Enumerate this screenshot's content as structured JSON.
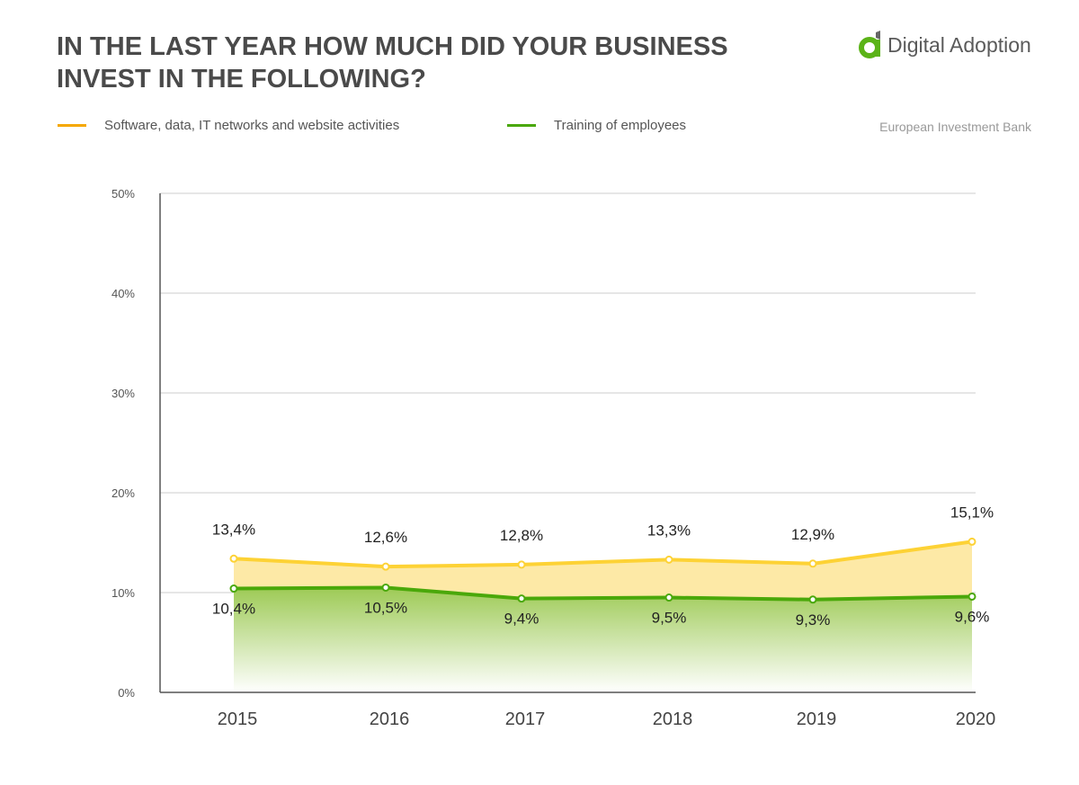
{
  "header": {
    "title": "IN THE LAST YEAR HOW MUCH DID YOUR BUSINESS INVEST IN THE FOLLOWING?",
    "logo_text": "Digital Adoption",
    "source": "European Investment Bank"
  },
  "chart_data": {
    "type": "area",
    "title": "IN THE LAST YEAR HOW MUCH DID YOUR BUSINESS INVEST IN THE FOLLOWING?",
    "categories": [
      "2015",
      "2016",
      "2017",
      "2018",
      "2019",
      "2020"
    ],
    "ylim": [
      0,
      50
    ],
    "yticks": [
      "0%",
      "10%",
      "20%",
      "30%",
      "40%",
      "50%"
    ],
    "grid": true,
    "legend": "top-left",
    "series": [
      {
        "name": "Software, data, IT networks and website activities",
        "values": [
          13.4,
          12.6,
          12.8,
          13.3,
          12.9,
          15.1
        ],
        "labels": [
          "13,4%",
          "12,6%",
          "12,8%",
          "13,3%",
          "12,9%",
          "15,1%"
        ],
        "color": "#fdd235",
        "legend_color": "#f5a800"
      },
      {
        "name": "Training of employees",
        "values": [
          10.4,
          10.5,
          9.4,
          9.5,
          9.3,
          9.6
        ],
        "labels": [
          "10,4%",
          "10,5%",
          "9,4%",
          "9,5%",
          "9,3%",
          "9,6%"
        ],
        "color": "#4aa80a",
        "legend_color": "#4aa80a"
      }
    ]
  }
}
